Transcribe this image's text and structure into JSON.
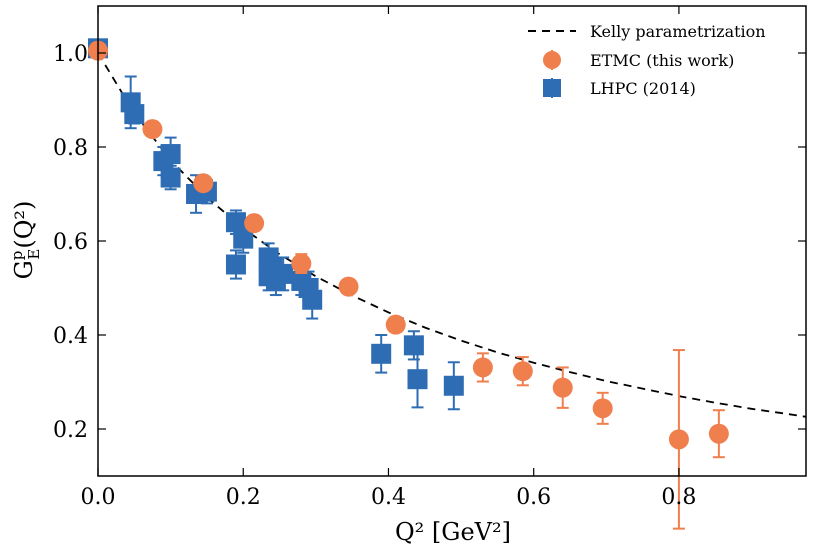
{
  "chart_data": {
    "type": "scatter",
    "title": "",
    "xlabel": "Q² [GeV²]",
    "ylabel_parts": {
      "base": "G",
      "sup": "p",
      "sub": "E",
      "rest": "(Q²)"
    },
    "xlim": [
      0.0,
      0.975
    ],
    "ylim": [
      0.1,
      1.1
    ],
    "xticks": [
      0.0,
      0.2,
      0.4,
      0.6,
      0.8
    ],
    "xtick_labels": [
      "0.0",
      "0.2",
      "0.4",
      "0.6",
      "0.8"
    ],
    "yticks": [
      0.2,
      0.4,
      0.6,
      0.8,
      1.0
    ],
    "ytick_labels": [
      "0.2",
      "0.4",
      "0.6",
      "0.8",
      "1.0"
    ],
    "grid": false,
    "legend_position": "top-right",
    "curve": {
      "name": "Kelly parametrization",
      "style": "dashed",
      "color": "#000000",
      "x": [
        0.0,
        0.05,
        0.1,
        0.15,
        0.2,
        0.25,
        0.3,
        0.35,
        0.4,
        0.45,
        0.5,
        0.55,
        0.6,
        0.65,
        0.7,
        0.75,
        0.8,
        0.85,
        0.9,
        0.95,
        0.975
      ],
      "y": [
        1.0,
        0.872,
        0.772,
        0.693,
        0.627,
        0.572,
        0.525,
        0.484,
        0.448,
        0.416,
        0.388,
        0.363,
        0.341,
        0.321,
        0.302,
        0.286,
        0.27,
        0.256,
        0.243,
        0.232,
        0.226
      ]
    },
    "series": [
      {
        "name": "ETMC (this work)",
        "marker": "circle",
        "color": "#f07f4e",
        "points": [
          {
            "x": 0.0,
            "y": 1.005,
            "err": 0.0
          },
          {
            "x": 0.075,
            "y": 0.838,
            "err": 0.01
          },
          {
            "x": 0.145,
            "y": 0.723,
            "err": 0.012
          },
          {
            "x": 0.215,
            "y": 0.638,
            "err": 0.015
          },
          {
            "x": 0.28,
            "y": 0.552,
            "err": 0.02
          },
          {
            "x": 0.345,
            "y": 0.503,
            "err": 0.01
          },
          {
            "x": 0.41,
            "y": 0.422,
            "err": 0.015
          },
          {
            "x": 0.53,
            "y": 0.331,
            "err": 0.03
          },
          {
            "x": 0.585,
            "y": 0.323,
            "err": 0.03
          },
          {
            "x": 0.64,
            "y": 0.288,
            "err": 0.043
          },
          {
            "x": 0.695,
            "y": 0.244,
            "err": 0.033
          },
          {
            "x": 0.8,
            "y": 0.178,
            "err": 0.19
          },
          {
            "x": 0.855,
            "y": 0.19,
            "err": 0.05
          }
        ]
      },
      {
        "name": "LHPC (2014)",
        "marker": "square",
        "color": "#2e6db4",
        "points": [
          {
            "x": 0.0,
            "y": 1.01,
            "err": 0.0
          },
          {
            "x": 0.045,
            "y": 0.895,
            "err": 0.055
          },
          {
            "x": 0.05,
            "y": 0.87,
            "err": 0.02
          },
          {
            "x": 0.09,
            "y": 0.77,
            "err": 0.03
          },
          {
            "x": 0.1,
            "y": 0.785,
            "err": 0.035
          },
          {
            "x": 0.1,
            "y": 0.735,
            "err": 0.025
          },
          {
            "x": 0.135,
            "y": 0.7,
            "err": 0.04
          },
          {
            "x": 0.15,
            "y": 0.705,
            "err": 0.025
          },
          {
            "x": 0.19,
            "y": 0.64,
            "err": 0.025
          },
          {
            "x": 0.19,
            "y": 0.55,
            "err": 0.03
          },
          {
            "x": 0.2,
            "y": 0.605,
            "err": 0.03
          },
          {
            "x": 0.235,
            "y": 0.565,
            "err": 0.03
          },
          {
            "x": 0.235,
            "y": 0.525,
            "err": 0.03
          },
          {
            "x": 0.24,
            "y": 0.545,
            "err": 0.035
          },
          {
            "x": 0.245,
            "y": 0.515,
            "err": 0.03
          },
          {
            "x": 0.255,
            "y": 0.53,
            "err": 0.035
          },
          {
            "x": 0.28,
            "y": 0.515,
            "err": 0.03
          },
          {
            "x": 0.29,
            "y": 0.5,
            "err": 0.035
          },
          {
            "x": 0.295,
            "y": 0.475,
            "err": 0.04
          },
          {
            "x": 0.39,
            "y": 0.36,
            "err": 0.04
          },
          {
            "x": 0.435,
            "y": 0.378,
            "err": 0.03
          },
          {
            "x": 0.44,
            "y": 0.306,
            "err": 0.06
          },
          {
            "x": 0.49,
            "y": 0.292,
            "err": 0.05
          }
        ]
      }
    ]
  }
}
